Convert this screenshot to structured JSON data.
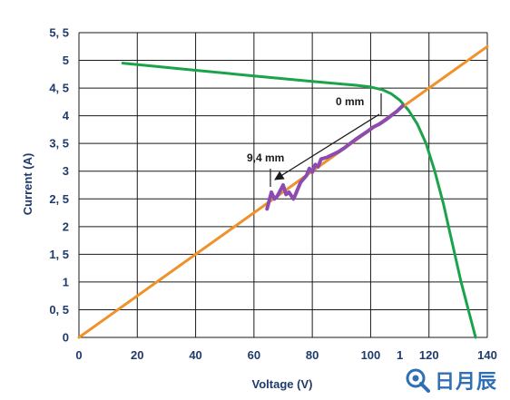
{
  "chart_data": {
    "type": "line",
    "xlabel": "Voltage (V)",
    "ylabel": "Current (A)",
    "xlim": [
      0,
      140
    ],
    "ylim": [
      0,
      5.5
    ],
    "xticks": [
      0,
      20,
      40,
      60,
      80,
      100,
      120,
      140
    ],
    "xtick_labels": [
      "0",
      "20",
      "40",
      "60",
      "80",
      "100",
      "120",
      "140"
    ],
    "yticks": [
      0,
      0.5,
      1,
      1.5,
      2,
      2.5,
      3,
      3.5,
      4,
      4.5,
      5,
      5.5
    ],
    "ytick_labels": [
      "0",
      "0, 5",
      "1",
      "1, 5",
      "2",
      "2, 5",
      "3",
      "3, 5",
      "4",
      "4, 5",
      "5",
      "5, 5"
    ],
    "extra_tick_label": {
      "x": 110,
      "label": "1"
    },
    "grid": true,
    "series": [
      {
        "color": "#1aa34a",
        "x": [
          15,
          40,
          60,
          80,
          95,
          100,
          104,
          107,
          110,
          113,
          116,
          119,
          122,
          125,
          128,
          131,
          134,
          136
        ],
        "y": [
          4.95,
          4.82,
          4.72,
          4.62,
          4.55,
          4.52,
          4.47,
          4.4,
          4.28,
          4.1,
          3.85,
          3.5,
          3.0,
          2.4,
          1.7,
          1.0,
          0.4,
          0.0
        ]
      },
      {
        "color": "#f0922b",
        "x": [
          0,
          140
        ],
        "y": [
          0,
          5.25
        ]
      },
      {
        "color": "#8b4bb0",
        "x": [
          64.5,
          66,
          67,
          68,
          70,
          71,
          72,
          73.5,
          74,
          76,
          78,
          79,
          80,
          81,
          82,
          83,
          85,
          87,
          89,
          91,
          93,
          95,
          97,
          99,
          101,
          103,
          105,
          107,
          109,
          111
        ],
        "y": [
          2.32,
          2.62,
          2.5,
          2.55,
          2.75,
          2.58,
          2.62,
          2.5,
          2.55,
          2.8,
          2.92,
          3.05,
          2.98,
          3.12,
          3.08,
          3.22,
          3.25,
          3.3,
          3.35,
          3.42,
          3.5,
          3.58,
          3.65,
          3.72,
          3.8,
          3.85,
          3.92,
          4.0,
          4.08,
          4.18
        ]
      }
    ],
    "annotations": [
      {
        "text": "0 mm",
        "x": 100,
        "y": 4.28
      },
      {
        "text": "9,4 mm",
        "x": 68,
        "y": 3.3
      }
    ]
  },
  "watermark": {
    "text": "日月辰",
    "icon": "watermark-logo-icon"
  }
}
